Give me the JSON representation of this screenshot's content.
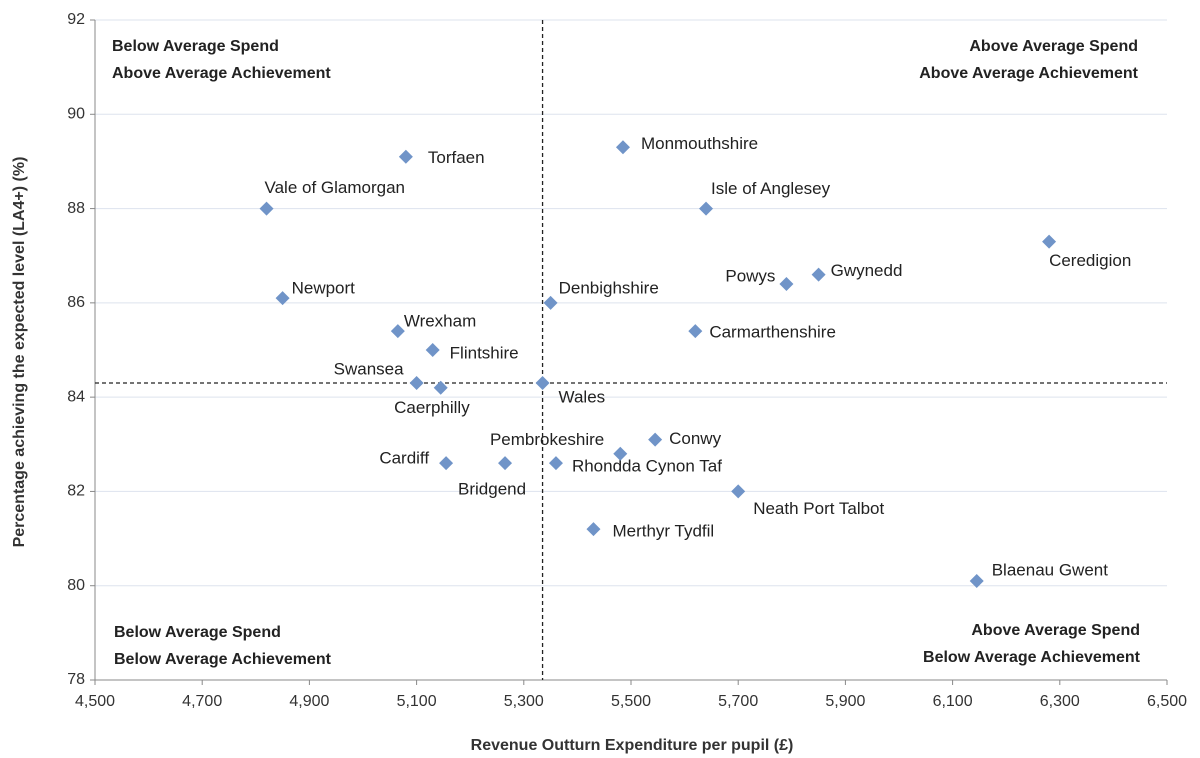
{
  "chart_data": {
    "type": "scatter",
    "x_label": "Revenue Outturn Expenditure per pupil (£)",
    "y_label": "Percentage achieving the expected level (LA4+) (%)",
    "color": "#7094c8",
    "grid": true,
    "xlim": [
      4500,
      6500
    ],
    "ylim": [
      78,
      92
    ],
    "xticks": [
      {
        "value": 4500,
        "label": "4,500"
      },
      {
        "value": 4700,
        "label": "4,700"
      },
      {
        "value": 4900,
        "label": "4,900"
      },
      {
        "value": 5100,
        "label": "5,100"
      },
      {
        "value": 5300,
        "label": "5,300"
      },
      {
        "value": 5500,
        "label": "5,500"
      },
      {
        "value": 5700,
        "label": "5,700"
      },
      {
        "value": 5900,
        "label": "5,900"
      },
      {
        "value": 6100,
        "label": "6,100"
      },
      {
        "value": 6300,
        "label": "6,300"
      },
      {
        "value": 6500,
        "label": "6,500"
      }
    ],
    "yticks": [
      78,
      80,
      82,
      84,
      86,
      88,
      90,
      92
    ],
    "points": [
      {
        "label": "Torfaen",
        "x": 5080,
        "y": 89.1
      },
      {
        "label": "Vale of Glamorgan",
        "x": 4820,
        "y": 88.0
      },
      {
        "label": "Newport",
        "x": 4850,
        "y": 86.1
      },
      {
        "label": "Wrexham",
        "x": 5065,
        "y": 85.4
      },
      {
        "label": "Flintshire",
        "x": 5130,
        "y": 85.0
      },
      {
        "label": "Swansea",
        "x": 5100,
        "y": 84.3
      },
      {
        "label": "Caerphilly",
        "x": 5145,
        "y": 84.2
      },
      {
        "label": "Wales",
        "x": 5335,
        "y": 84.3
      },
      {
        "label": "Denbighshire",
        "x": 5350,
        "y": 86.0
      },
      {
        "label": "Monmouthshire",
        "x": 5485,
        "y": 89.3
      },
      {
        "label": "Isle of Anglesey",
        "x": 5640,
        "y": 88.0
      },
      {
        "label": "Ceredigion",
        "x": 6280,
        "y": 87.3
      },
      {
        "label": "Gwynedd",
        "x": 5850,
        "y": 86.6
      },
      {
        "label": "Powys",
        "x": 5790,
        "y": 86.4
      },
      {
        "label": "Carmarthenshire",
        "x": 5620,
        "y": 85.4
      },
      {
        "label": "Cardiff",
        "x": 5155,
        "y": 82.6
      },
      {
        "label": "Bridgend",
        "x": 5265,
        "y": 82.6
      },
      {
        "label": "Rhondda Cynon Taf",
        "x": 5360,
        "y": 82.6
      },
      {
        "label": "Pembrokeshire",
        "x": 5480,
        "y": 82.8
      },
      {
        "label": "Conwy",
        "x": 5545,
        "y": 83.1
      },
      {
        "label": "Neath Port Talbot",
        "x": 5700,
        "y": 82.0
      },
      {
        "label": "Merthyr Tydfil",
        "x": 5430,
        "y": 81.2
      },
      {
        "label": "Blaenau Gwent",
        "x": 6145,
        "y": 80.1
      }
    ],
    "annotations": [
      {
        "lines": [
          "Below Average Spend",
          "Above Average Achievement"
        ]
      },
      {
        "lines": [
          "Above Average Spend",
          "Above Average Achievement"
        ]
      },
      {
        "lines": [
          "Below Average Spend",
          "Below Average Achievement"
        ]
      },
      {
        "lines": [
          "Above Average Spend",
          "Below Average Achievement"
        ]
      }
    ]
  }
}
